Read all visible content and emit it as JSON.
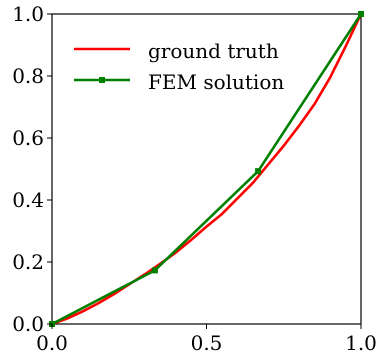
{
  "chart_data": {
    "type": "line",
    "title": "",
    "xlabel": "",
    "ylabel": "",
    "xlim": [
      0,
      1
    ],
    "ylim": [
      0,
      1
    ],
    "grid": false,
    "legend_position": "top-left",
    "x_ticks": [
      "0.0",
      "0.5",
      "1.0"
    ],
    "y_ticks": [
      "0.0",
      "0.2",
      "0.4",
      "0.6",
      "0.8",
      "1.0"
    ],
    "series": [
      {
        "name": "ground truth",
        "color": "#ff0000",
        "marker": "none",
        "x": [
          0,
          0.05,
          0.1,
          0.15,
          0.2,
          0.25,
          0.3,
          0.35,
          0.4,
          0.45,
          0.5,
          0.55,
          0.6,
          0.65,
          0.7,
          0.75,
          0.8,
          0.85,
          0.9,
          0.95,
          1.0
        ],
        "y": [
          0,
          0.018,
          0.041,
          0.067,
          0.096,
          0.128,
          0.16,
          0.194,
          0.23,
          0.271,
          0.314,
          0.355,
          0.405,
          0.455,
          0.515,
          0.575,
          0.64,
          0.71,
          0.795,
          0.895,
          1.0
        ]
      },
      {
        "name": "FEM solution",
        "color": "#008000",
        "marker": "square",
        "x": [
          0,
          0.333,
          0.667,
          1.0
        ],
        "y": [
          0,
          0.173,
          0.493,
          1.0
        ]
      }
    ]
  }
}
